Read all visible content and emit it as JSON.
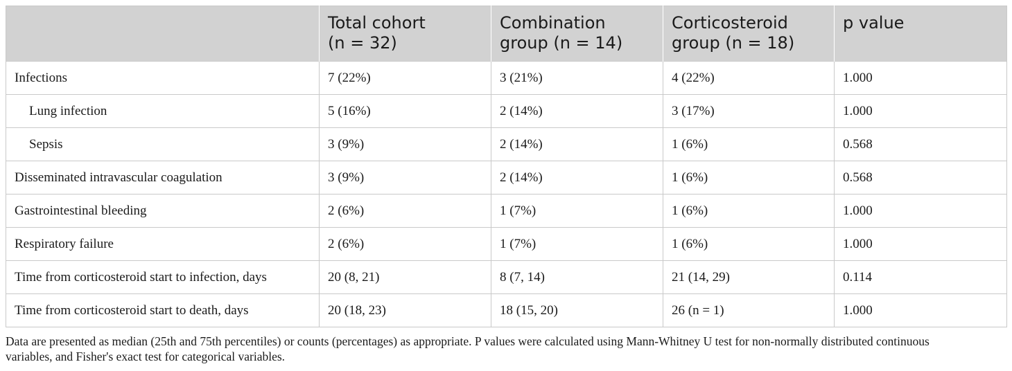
{
  "table": {
    "headers": [
      {
        "line1": "",
        "line2": ""
      },
      {
        "line1": "Total cohort",
        "line2": "(n = 32)"
      },
      {
        "line1": "Combination",
        "line2": "group (n = 14)"
      },
      {
        "line1": "Corticosteroid",
        "line2": "group (n = 18)"
      },
      {
        "line1": "p value",
        "line2": ""
      }
    ],
    "rows": [
      {
        "label": "Infections",
        "indent": false,
        "cells": [
          "7 (22%)",
          "3 (21%)",
          "4 (22%)",
          "1.000"
        ]
      },
      {
        "label": "Lung infection",
        "indent": true,
        "cells": [
          "5 (16%)",
          "2 (14%)",
          "3 (17%)",
          "1.000"
        ]
      },
      {
        "label": "Sepsis",
        "indent": true,
        "cells": [
          "3 (9%)",
          "2 (14%)",
          "1 (6%)",
          "0.568"
        ]
      },
      {
        "label": "Disseminated intravascular coagulation",
        "indent": false,
        "cells": [
          "3 (9%)",
          "2 (14%)",
          "1 (6%)",
          "0.568"
        ]
      },
      {
        "label": "Gastrointestinal bleeding",
        "indent": false,
        "cells": [
          "2 (6%)",
          "1 (7%)",
          "1 (6%)",
          "1.000"
        ]
      },
      {
        "label": "Respiratory failure",
        "indent": false,
        "cells": [
          "2 (6%)",
          "1 (7%)",
          "1 (6%)",
          "1.000"
        ]
      },
      {
        "label": "Time from corticosteroid start to infection, days",
        "indent": false,
        "cells": [
          "20 (8, 21)",
          "8 (7, 14)",
          "21 (14, 29)",
          "0.114"
        ]
      },
      {
        "label": "Time from corticosteroid start to death, days",
        "indent": false,
        "cells": [
          "20 (18, 23)",
          "18 (15, 20)",
          "26 (n = 1)",
          "1.000"
        ]
      }
    ]
  },
  "footnote": {
    "line1": "Data are presented as median (25th and 75th percentiles) or counts (percentages) as appropriate. P values were calculated using Mann-Whitney U test for non-normally distributed continuous",
    "line2": "variables, and Fisher's exact test for categorical variables."
  },
  "colors": {
    "header_bg": "#d2d2d2",
    "border": "#c9c9c9",
    "text": "#1a1a1a"
  }
}
